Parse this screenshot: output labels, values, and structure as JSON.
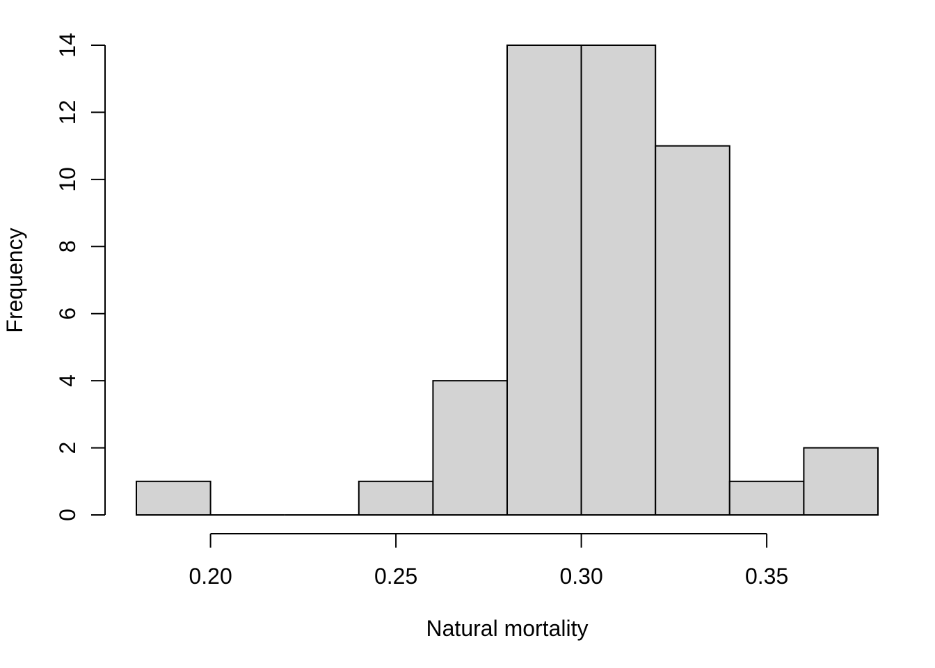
{
  "chart_data": {
    "type": "bar",
    "title": "",
    "xlabel": "Natural mortality",
    "ylabel": "Frequency",
    "bins": [
      {
        "start": 0.18,
        "end": 0.2,
        "count": 1
      },
      {
        "start": 0.2,
        "end": 0.22,
        "count": 0
      },
      {
        "start": 0.22,
        "end": 0.24,
        "count": 0
      },
      {
        "start": 0.24,
        "end": 0.26,
        "count": 1
      },
      {
        "start": 0.26,
        "end": 0.28,
        "count": 4
      },
      {
        "start": 0.28,
        "end": 0.3,
        "count": 14
      },
      {
        "start": 0.3,
        "end": 0.32,
        "count": 14
      },
      {
        "start": 0.32,
        "end": 0.34,
        "count": 11
      },
      {
        "start": 0.34,
        "end": 0.36,
        "count": 1
      },
      {
        "start": 0.36,
        "end": 0.38,
        "count": 2
      }
    ],
    "x_ticks": [
      0.2,
      0.25,
      0.3,
      0.35
    ],
    "x_tick_labels": [
      "0.20",
      "0.25",
      "0.30",
      "0.35"
    ],
    "y_ticks": [
      0,
      2,
      4,
      6,
      8,
      10,
      12,
      14
    ],
    "y_tick_labels": [
      "0",
      "2",
      "4",
      "6",
      "8",
      "10",
      "12",
      "14"
    ],
    "xlim": [
      0.18,
      0.38
    ],
    "ylim": [
      0,
      14
    ],
    "grid": false,
    "colors": {
      "bar_fill": "#d3d3d3",
      "bar_stroke": "#000000"
    }
  }
}
